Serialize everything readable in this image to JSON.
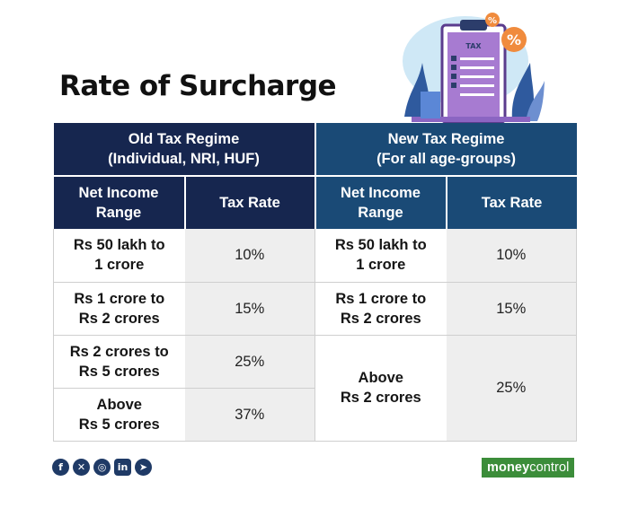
{
  "title": "Rate of Surcharge",
  "illustration": {
    "clipboard_label": "TAX",
    "badge_symbol": "%"
  },
  "table": {
    "old_regime": {
      "line1": "Old Tax Regime",
      "line2": "(Individual, NRI, HUF)"
    },
    "new_regime": {
      "line1": "New Tax Regime",
      "line2": "(For all age-groups)"
    },
    "col_range": {
      "line1": "Net Income",
      "line2": "Range"
    },
    "col_rate": "Tax Rate",
    "old_rows": [
      {
        "range1": "Rs 50 lakh to",
        "range2": "1 crore",
        "rate": "10%"
      },
      {
        "range1": "Rs 1 crore to",
        "range2": "Rs 2 crores",
        "rate": "15%"
      },
      {
        "range1": "Rs 2 crores to",
        "range2": "Rs 5 crores",
        "rate": "25%"
      },
      {
        "range1": "Above",
        "range2": "Rs 5 crores",
        "rate": "37%"
      }
    ],
    "new_rows": [
      {
        "range1": "Rs 50 lakh to",
        "range2": "1 crore",
        "rate": "10%"
      },
      {
        "range1": "Rs 1 crore to",
        "range2": "Rs 2 crores",
        "rate": "15%"
      },
      {
        "range1": "Above",
        "range2": "Rs 2 crores",
        "rate": "25%"
      }
    ]
  },
  "social_icons": [
    "facebook-icon",
    "x-icon",
    "instagram-icon",
    "linkedin-icon",
    "telegram-icon"
  ],
  "brand": {
    "part1": "money",
    "part2": "control"
  },
  "colors": {
    "old_header": "#16264f",
    "new_header": "#1a4a76",
    "rate_cell": "#eeeeee",
    "brand": "#3c8d3a"
  }
}
